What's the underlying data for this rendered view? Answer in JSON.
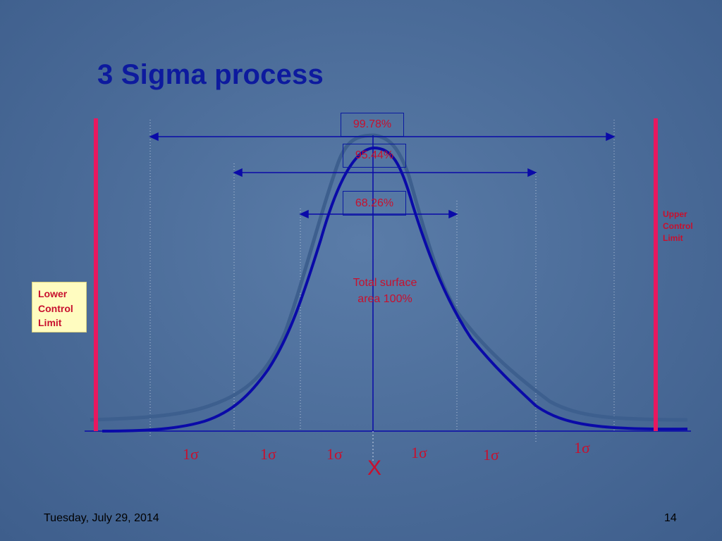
{
  "title": "3 Sigma process",
  "percent_labels": {
    "p9978": "99.78%",
    "p9544": "95.44%",
    "p6826": "68.26%"
  },
  "total_area": {
    "line1": "Total surface",
    "line2": "area 100%"
  },
  "upper_control_limit": {
    "line1": "Upper",
    "line2": "Control",
    "line3": "Limit"
  },
  "lower_control_limit": {
    "line1": "Lower",
    "line2": "Control",
    "line3": "Limit"
  },
  "sigma_labels": [
    "1σ",
    "1σ",
    "1σ",
    "1σ",
    "1σ",
    "1σ"
  ],
  "center_label": "X",
  "footer": {
    "date": "Tuesday, July 29, 2014",
    "page": "14"
  },
  "colors": {
    "title": "#0d1a9e",
    "label_red": "#c8102e",
    "control_limit_line": "#e8185f",
    "curve_dark_blue": "#0a0aa8",
    "curve_gray_blue": "#3d5f8e",
    "lcl_box": "#fffcc0"
  }
}
